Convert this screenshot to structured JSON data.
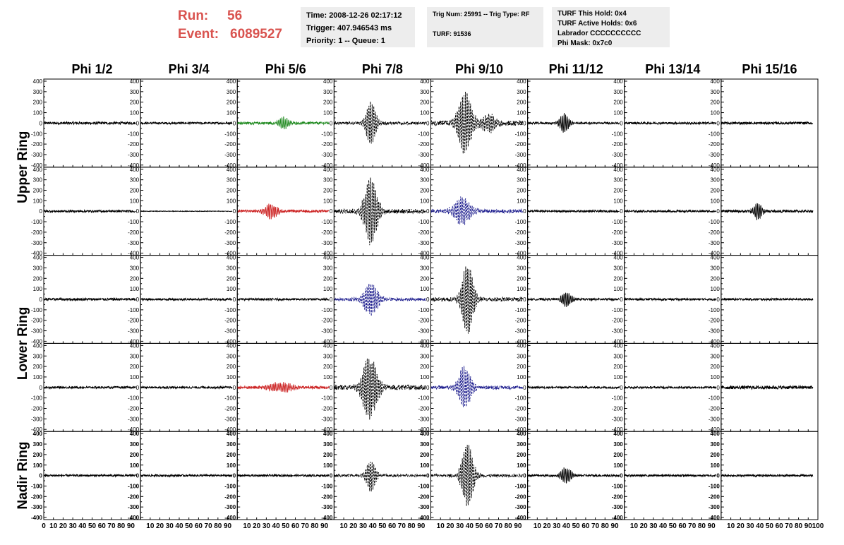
{
  "header": {
    "run_label": "Run:",
    "run_value": "56",
    "event_label": "Event:",
    "event_value": "6089527",
    "info1": {
      "time": "Time: 2008-12-26 02:17:12",
      "trigger": "Trigger: 407.946543 ms",
      "priority": "Priority: 1 -- Queue: 1"
    },
    "info2": {
      "trig": "Trig Num: 25991 -- Trig Type: RF",
      "turf": "TURF: 91536"
    },
    "info3": {
      "this_hold": "TURF This Hold: 0x4",
      "active_holds": "TURF Active Holds: 0x6",
      "labrador": "Labrador CCCCCCCCCC",
      "phi_mask": "Phi Mask: 0x7c0"
    }
  },
  "chart_data": {
    "type": "line",
    "title": "",
    "columns": [
      "Phi 1/2",
      "Phi 3/4",
      "Phi 5/6",
      "Phi 7/8",
      "Phi 9/10",
      "Phi 11/12",
      "Phi 13/14",
      "Phi 15/16"
    ],
    "row_labels": [
      {
        "label": "Upper Ring",
        "rows": [
          0,
          1
        ]
      },
      {
        "label": "Lower Ring",
        "rows": [
          2,
          3
        ]
      },
      {
        "label": "Nadir Ring",
        "rows": [
          4
        ]
      }
    ],
    "xlim": [
      0,
      100
    ],
    "ylim": [
      -400,
      400
    ],
    "x_ticks": [
      0,
      10,
      20,
      30,
      40,
      50,
      60,
      70,
      80,
      90,
      100
    ],
    "x_tick_labels": [
      "0",
      "10",
      "20",
      "30",
      "40",
      "50",
      "60",
      "70",
      "80",
      "90",
      "100"
    ],
    "y_ticks": [
      400,
      300,
      200,
      100,
      0,
      -100,
      -200,
      -300,
      -400
    ],
    "y_tick_labels": [
      "400",
      "300",
      "200",
      "100",
      "0",
      "-100",
      "-200",
      "-300",
      "-400"
    ],
    "colors": {
      "black": "#000000",
      "green": "#228b22",
      "red": "#cc2222",
      "blue": "#1a1a8c"
    },
    "waveforms": [
      [
        {
          "noise": 12,
          "pulses": [],
          "color": "black",
          "dashed": false,
          "x_end": 95
        },
        {
          "noise": 10,
          "pulses": [],
          "color": "black",
          "dashed": false,
          "x_end": 95
        },
        {
          "noise": 12,
          "pulses": [
            {
              "t": 48,
              "amp": 55,
              "width": 6
            }
          ],
          "color": "green",
          "dashed": false,
          "x_end": 95
        },
        {
          "noise": 14,
          "pulses": [
            {
              "t": 38,
              "amp": 200,
              "width": 6
            }
          ],
          "color": "black",
          "dashed": true,
          "x_end": 95
        },
        {
          "noise": 24,
          "pulses": [
            {
              "t": 35,
              "amp": 300,
              "width": 8
            },
            {
              "t": 60,
              "amp": 80,
              "width": 10
            }
          ],
          "color": "black",
          "dashed": true,
          "x_end": 95
        },
        {
          "noise": 10,
          "pulses": [
            {
              "t": 38,
              "amp": 90,
              "width": 6
            }
          ],
          "color": "black",
          "dashed": false,
          "x_end": 95
        },
        {
          "noise": 10,
          "pulses": [],
          "color": "black",
          "dashed": false,
          "x_end": 95
        },
        {
          "noise": 12,
          "pulses": [],
          "color": "black",
          "dashed": false,
          "x_end": 95
        }
      ],
      [
        {
          "noise": 10,
          "pulses": [],
          "color": "black",
          "dashed": false,
          "x_end": 95
        },
        {
          "noise": 3,
          "pulses": [],
          "color": "black",
          "dashed": false,
          "x_end": 95
        },
        {
          "noise": 12,
          "pulses": [
            {
              "t": 35,
              "amp": 70,
              "width": 8
            }
          ],
          "color": "red",
          "dashed": false,
          "x_end": 95
        },
        {
          "noise": 22,
          "pulses": [
            {
              "t": 38,
              "amp": 320,
              "width": 8
            }
          ],
          "color": "black",
          "dashed": true,
          "x_end": 95
        },
        {
          "noise": 18,
          "pulses": [
            {
              "t": 32,
              "amp": 130,
              "width": 10
            }
          ],
          "color": "blue",
          "dashed": true,
          "x_end": 95
        },
        {
          "noise": 10,
          "pulses": [],
          "color": "black",
          "dashed": false,
          "x_end": 95
        },
        {
          "noise": 10,
          "pulses": [],
          "color": "black",
          "dashed": false,
          "x_end": 95
        },
        {
          "noise": 12,
          "pulses": [
            {
              "t": 38,
              "amp": 80,
              "width": 5
            }
          ],
          "color": "black",
          "dashed": false,
          "x_end": 95
        }
      ],
      [
        {
          "noise": 12,
          "pulses": [],
          "color": "black",
          "dashed": false,
          "x_end": 95
        },
        {
          "noise": 10,
          "pulses": [],
          "color": "black",
          "dashed": false,
          "x_end": 95
        },
        {
          "noise": 10,
          "pulses": [],
          "color": "black",
          "dashed": false,
          "x_end": 95
        },
        {
          "noise": 14,
          "pulses": [
            {
              "t": 38,
              "amp": 150,
              "width": 9
            }
          ],
          "color": "blue",
          "dashed": true,
          "x_end": 95
        },
        {
          "noise": 20,
          "pulses": [
            {
              "t": 38,
              "amp": 330,
              "width": 7
            }
          ],
          "color": "black",
          "dashed": true,
          "x_end": 95
        },
        {
          "noise": 10,
          "pulses": [
            {
              "t": 40,
              "amp": 70,
              "width": 6
            }
          ],
          "color": "black",
          "dashed": false,
          "x_end": 95
        },
        {
          "noise": 10,
          "pulses": [],
          "color": "black",
          "dashed": false,
          "x_end": 95
        },
        {
          "noise": 10,
          "pulses": [],
          "color": "black",
          "dashed": false,
          "x_end": 95
        }
      ],
      [
        {
          "noise": 10,
          "pulses": [],
          "color": "black",
          "dashed": false,
          "x_end": 95
        },
        {
          "noise": 10,
          "pulses": [],
          "color": "black",
          "dashed": false,
          "x_end": 95
        },
        {
          "noise": 14,
          "pulses": [
            {
              "t": 45,
              "amp": 45,
              "width": 14
            }
          ],
          "color": "red",
          "dashed": false,
          "x_end": 95
        },
        {
          "noise": 24,
          "pulses": [
            {
              "t": 37,
              "amp": 300,
              "width": 9
            }
          ],
          "color": "black",
          "dashed": true,
          "x_end": 95
        },
        {
          "noise": 16,
          "pulses": [
            {
              "t": 35,
              "amp": 200,
              "width": 8
            }
          ],
          "color": "blue",
          "dashed": true,
          "x_end": 95
        },
        {
          "noise": 10,
          "pulses": [],
          "color": "black",
          "dashed": false,
          "x_end": 95
        },
        {
          "noise": 10,
          "pulses": [],
          "color": "black",
          "dashed": false,
          "x_end": 95
        },
        {
          "noise": 16,
          "pulses": [],
          "color": "black",
          "dashed": false,
          "x_end": 95
        }
      ],
      [
        {
          "noise": 10,
          "pulses": [],
          "color": "black",
          "dashed": false,
          "x_end": 95
        },
        {
          "noise": 10,
          "pulses": [],
          "color": "black",
          "dashed": false,
          "x_end": 95
        },
        {
          "noise": 10,
          "pulses": [],
          "color": "black",
          "dashed": false,
          "x_end": 95
        },
        {
          "noise": 12,
          "pulses": [
            {
              "t": 38,
              "amp": 150,
              "width": 6
            }
          ],
          "color": "black",
          "dashed": true,
          "x_end": 95
        },
        {
          "noise": 14,
          "pulses": [
            {
              "t": 38,
              "amp": 300,
              "width": 7
            }
          ],
          "color": "black",
          "dashed": true,
          "x_end": 95
        },
        {
          "noise": 10,
          "pulses": [
            {
              "t": 40,
              "amp": 80,
              "width": 6
            }
          ],
          "color": "black",
          "dashed": false,
          "x_end": 95
        },
        {
          "noise": 10,
          "pulses": [],
          "color": "black",
          "dashed": false,
          "x_end": 95
        },
        {
          "noise": 10,
          "pulses": [],
          "color": "black",
          "dashed": false,
          "x_end": 95
        }
      ]
    ]
  }
}
